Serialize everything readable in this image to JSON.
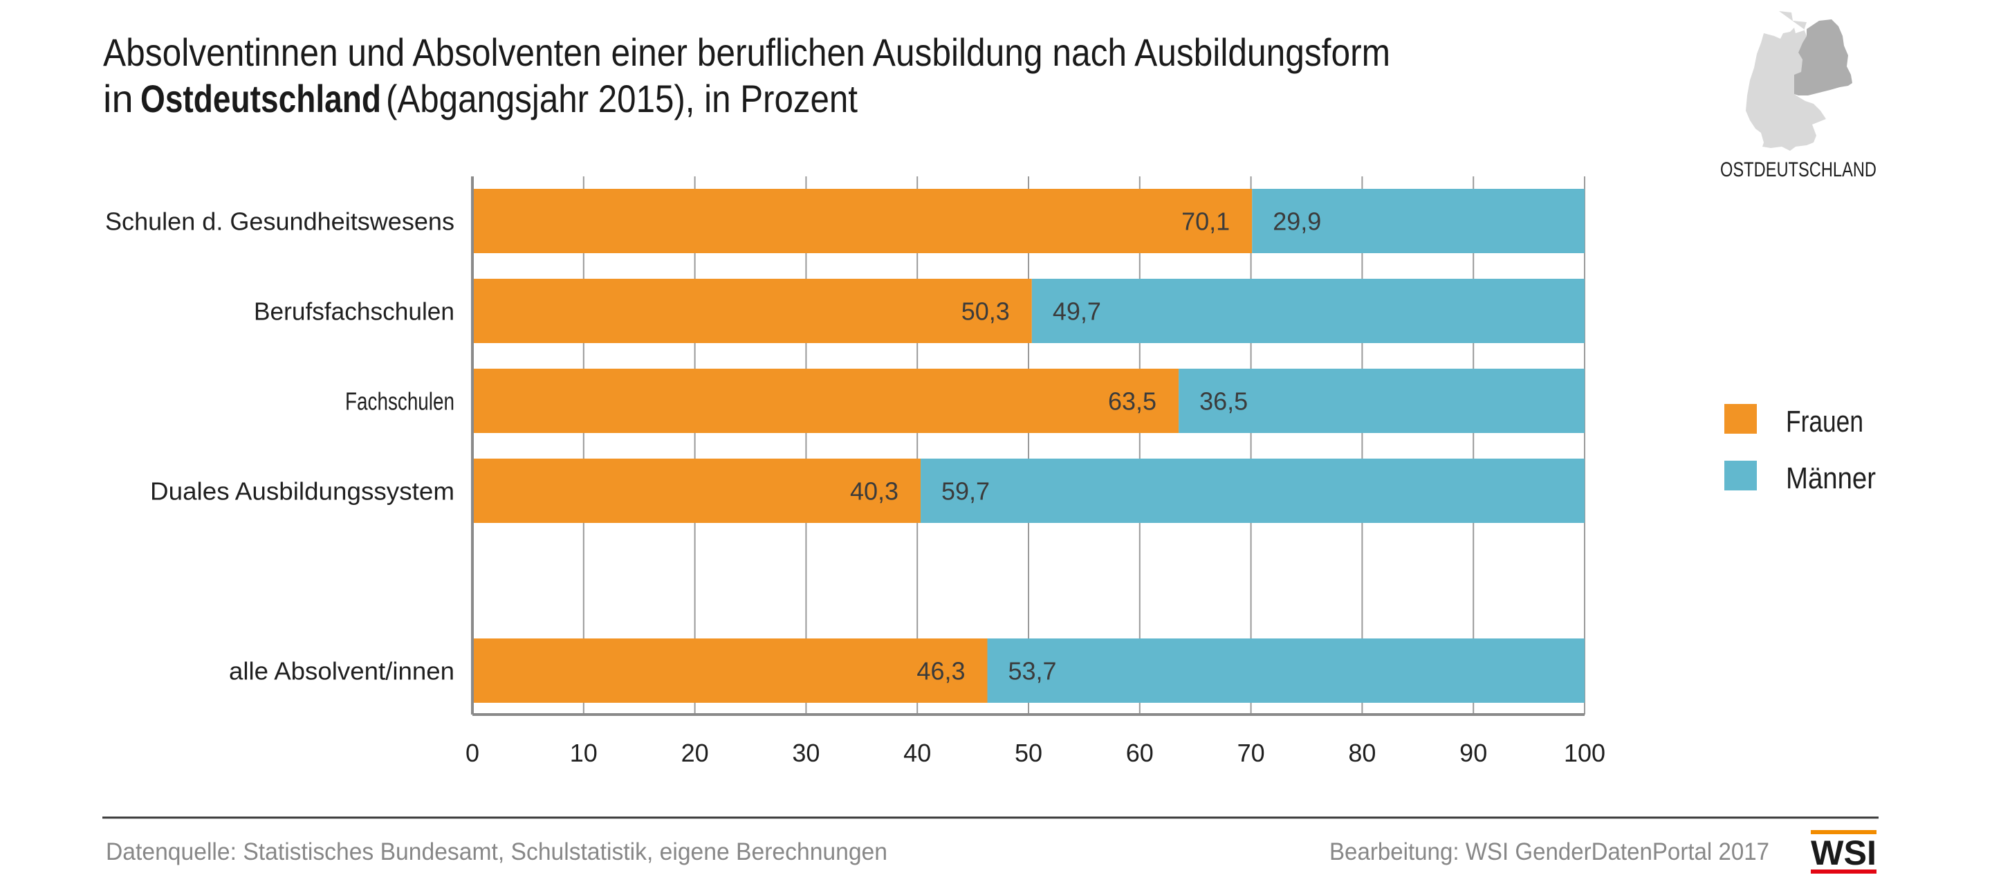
{
  "header": {
    "title_line1": "Absolventinnen und Absolventen einer beruflichen Ausbildung nach Ausbildungsform",
    "title_line2_prefix": "in ",
    "title_line2_bold": "Ostdeutschland",
    "title_line2_suffix": " (Abgangsjahr 2015), in Prozent"
  },
  "region_badge": {
    "label": "OSTDEUTSCHLAND",
    "map_icon": "germany-map-east-highlighted-icon"
  },
  "colors": {
    "frauen": "#F29425",
    "maenner": "#62B8CE",
    "grid": "#9a9a9a",
    "axis": "#8a8a8a",
    "footer_text": "#878787",
    "logo_orange": "#F28C00",
    "logo_red": "#E30613"
  },
  "chart_data": {
    "type": "bar",
    "orientation": "horizontal",
    "stacked": true,
    "title": "Absolventinnen und Absolventen einer beruflichen Ausbildung nach Ausbildungsform in Ostdeutschland (Abgangsjahr 2015), in Prozent",
    "categories": [
      "Schulen d. Gesundheitswesens",
      "Berufsfachschulen",
      "Fachschulen",
      "Duales Ausbildungssystem",
      "",
      "alle Absolvent/innen"
    ],
    "series": [
      {
        "name": "Frauen",
        "color": "#F29425",
        "values": [
          70.1,
          50.3,
          63.5,
          40.3,
          null,
          46.3
        ]
      },
      {
        "name": "Männer",
        "color": "#62B8CE",
        "values": [
          29.9,
          49.7,
          36.5,
          59.7,
          null,
          53.7
        ]
      }
    ],
    "value_labels": {
      "Frauen": [
        "70,1",
        "50,3",
        "63,5",
        "40,3",
        "",
        "46,3"
      ],
      "Männer": [
        "29,9",
        "49,7",
        "36,5",
        "59,7",
        "",
        "53,7"
      ]
    },
    "xlim": [
      0,
      100
    ],
    "xticks": [
      0,
      10,
      20,
      30,
      40,
      50,
      60,
      70,
      80,
      90,
      100
    ],
    "xtick_labels": [
      "0",
      "10",
      "20",
      "30",
      "40",
      "50",
      "60",
      "70",
      "80",
      "90",
      "100"
    ],
    "xlabel": "",
    "ylabel": "",
    "grid": "vertical",
    "legend": {
      "position": "right",
      "entries": [
        "Frauen",
        "Männer"
      ]
    }
  },
  "footer": {
    "source": "Datenquelle: Statistisches Bundesamt, Schulstatistik, eigene Berechnungen",
    "credit": "Bearbeitung: WSI GenderDatenPortal 2017",
    "logo_text": "WSI"
  }
}
